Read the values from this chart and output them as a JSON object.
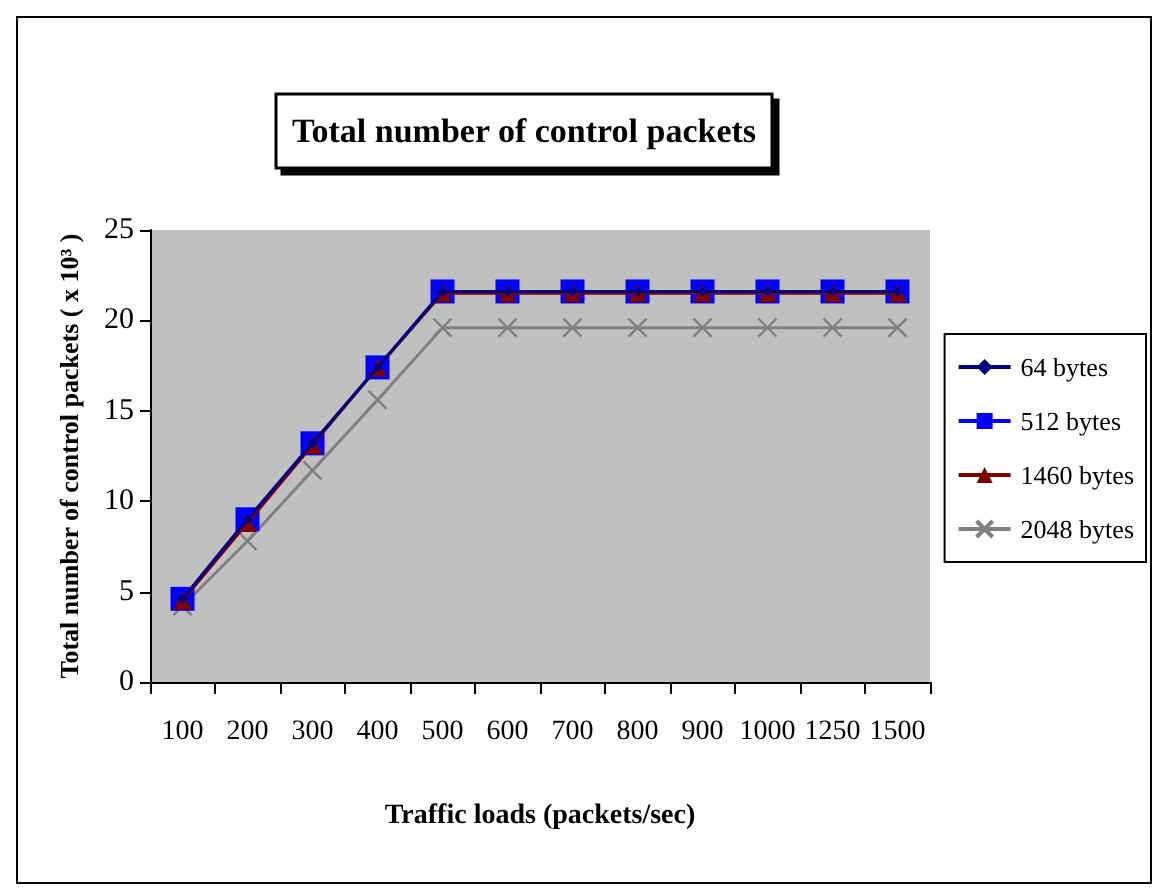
{
  "chart_data": {
    "type": "line",
    "title": "Total number of control packets",
    "xlabel": "Traffic loads (packets/sec)",
    "ylabel": "Total number of control packets ( x 10³ )",
    "categories": [
      "100",
      "200",
      "300",
      "400",
      "500",
      "600",
      "700",
      "800",
      "900",
      "1000",
      "1250",
      "1500"
    ],
    "series": [
      {
        "name": "64 bytes",
        "color": "#000080",
        "marker": "diamond",
        "values": [
          4.6,
          9,
          13.2,
          17.4,
          21.6,
          21.6,
          21.6,
          21.6,
          21.6,
          21.6,
          21.6,
          21.6
        ]
      },
      {
        "name": "512 bytes",
        "color": "#0000ff",
        "marker": "square",
        "values": [
          4.6,
          9,
          13.2,
          17.4,
          21.6,
          21.6,
          21.6,
          21.6,
          21.6,
          21.6,
          21.6,
          21.6
        ]
      },
      {
        "name": "1460 bytes",
        "color": "#800000",
        "marker": "triangle",
        "values": [
          4.5,
          8.8,
          13.1,
          17.4,
          21.5,
          21.5,
          21.5,
          21.5,
          21.5,
          21.5,
          21.5,
          21.5
        ]
      },
      {
        "name": "2048 bytes",
        "color": "#808080",
        "marker": "cross",
        "values": [
          4.2,
          7.8,
          11.7,
          15.6,
          19.6,
          19.6,
          19.6,
          19.6,
          19.6,
          19.6,
          19.6,
          19.6
        ]
      }
    ],
    "ylim": [
      0,
      25
    ],
    "yticks": [
      0,
      5,
      10,
      15,
      20,
      25
    ],
    "grid": false,
    "legend": "right",
    "line_style": "solid"
  }
}
